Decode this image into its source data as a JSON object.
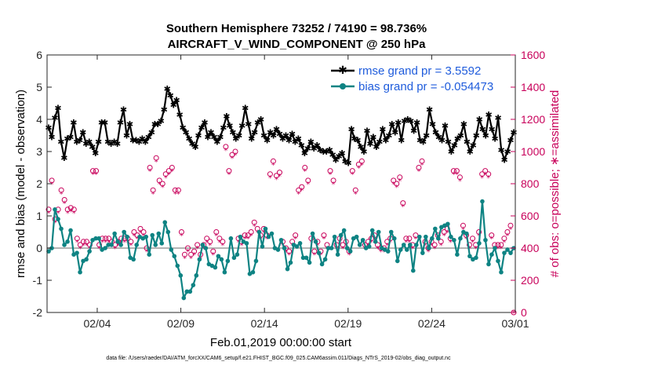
{
  "chart_data": {
    "type": "line",
    "title_line1": "Southern Hemisphere 73252 / 74190 = 98.736%",
    "title_line2": "AIRCRAFT_V_WIND_COMPONENT @ 250 hPa",
    "xlabel": "Feb.01,2019 00:00:00 start",
    "ylabel_left": "rmse and bias (model - observation)",
    "ylabel_right": "# of obs: o=possible; ∗=assimilated",
    "x_ticks": [
      {
        "day": 3,
        "label": "02/04"
      },
      {
        "day": 8,
        "label": "02/09"
      },
      {
        "day": 13,
        "label": "02/14"
      },
      {
        "day": 18,
        "label": "02/19"
      },
      {
        "day": 23,
        "label": "02/24"
      },
      {
        "day": 28,
        "label": "03/01"
      }
    ],
    "xlim": [
      0,
      28
    ],
    "ylim_left": [
      -2,
      6
    ],
    "yticks_left": [
      "-2",
      "-1",
      "0",
      "1",
      "2",
      "3",
      "4",
      "5",
      "6"
    ],
    "ylim_right": [
      0,
      1600
    ],
    "yticks_right": [
      "0",
      "200",
      "400",
      "600",
      "800",
      "1000",
      "1200",
      "1400",
      "1600"
    ],
    "colors": {
      "rmse": "#000000",
      "bias": "#0e8383",
      "count": "#c8005a",
      "zero_line": "#b4b4b4",
      "legend_text": "#1f5cdc"
    },
    "series": [
      {
        "name": "rmse",
        "legend": "rmse grand pr = 3.5592",
        "values": [
          3.75,
          3.45,
          4.05,
          4.35,
          3.3,
          2.8,
          3.4,
          3.45,
          3.9,
          3.3,
          3.35,
          3.6,
          3.25,
          3.3,
          3.15,
          2.95,
          3.3,
          3.9,
          3.9,
          3.3,
          3.25,
          3.3,
          3.25,
          3.9,
          4.3,
          3.5,
          3.85,
          3.35,
          3.35,
          3.3,
          3.4,
          3.3,
          3.45,
          3.6,
          3.85,
          3.85,
          3.95,
          4.3,
          4.95,
          4.75,
          4.45,
          4.6,
          4.15,
          3.75,
          3.6,
          3.4,
          3.25,
          3.15,
          3.5,
          3.75,
          3.9,
          3.45,
          3.6,
          3.45,
          3.3,
          3.45,
          3.75,
          4.1,
          3.8,
          3.6,
          3.4,
          3.5,
          3.8,
          4.35,
          3.85,
          3.4,
          3.6,
          3.9,
          4.0,
          3.5,
          3.35,
          3.6,
          3.5,
          3.7,
          3.55,
          3.4,
          3.5,
          3.35,
          3.55,
          3.3,
          3.4,
          3.2,
          2.95,
          3.1,
          3.3,
          3.1,
          3.2,
          3.05,
          3.0,
          3.0,
          3.05,
          2.9,
          2.75,
          2.85,
          2.95,
          2.7,
          2.65,
          3.7,
          3.4,
          3.35,
          3.15,
          3.0,
          3.65,
          3.25,
          3.45,
          3.15,
          3.3,
          3.7,
          3.35,
          3.5,
          3.85,
          3.6,
          3.9,
          3.35,
          3.95,
          4.0,
          3.95,
          3.65,
          3.9,
          3.35,
          3.3,
          3.5,
          4.3,
          3.85,
          3.6,
          3.45,
          3.35,
          3.8,
          3.3,
          3.0,
          3.2,
          3.4,
          3.5,
          3.85,
          3.3,
          3.0,
          3.2,
          3.5,
          4.0,
          3.7,
          3.5,
          4.15,
          3.7,
          3.4,
          4.05,
          3.05,
          2.75,
          3.0,
          3.35,
          3.6
        ]
      },
      {
        "name": "bias",
        "legend": "bias grand pr = -0.054473",
        "values": [
          -0.1,
          0.0,
          1.2,
          0.9,
          0.6,
          0.1,
          0.2,
          0.55,
          -0.2,
          -0.15,
          -0.75,
          -0.4,
          -0.35,
          -0.1,
          0.25,
          0.3,
          0.3,
          -0.05,
          0.0,
          0.1,
          0.1,
          0.45,
          0.2,
          0.1,
          0.5,
          0.35,
          -0.3,
          -0.35,
          0.1,
          0.35,
          0.3,
          0.35,
          -0.2,
          0.4,
          0.1,
          0.45,
          0.15,
          0.8,
          0.5,
          -0.05,
          -0.25,
          -0.55,
          -0.85,
          -1.55,
          -1.35,
          -1.35,
          -1.15,
          -0.85,
          -0.35,
          0.1,
          0.0,
          -0.5,
          -0.55,
          -0.6,
          -0.25,
          -0.35,
          -0.75,
          -0.4,
          0.3,
          -0.3,
          -0.2,
          0.35,
          0.2,
          0.15,
          -0.8,
          -0.75,
          -0.4,
          0.5,
          0.05,
          0.6,
          0.35,
          0.45,
          0.0,
          -0.05,
          0.25,
          0.0,
          -0.65,
          -0.45,
          0.1,
          0.05,
          0.15,
          -0.3,
          -0.3,
          -0.45,
          0.45,
          0.2,
          -0.15,
          -0.5,
          -0.35,
          0.0,
          0.0,
          0.35,
          -0.2,
          0.4,
          0.55,
          0.0,
          -0.1,
          0.3,
          0.35,
          0.1,
          0.25,
          0.0,
          0.05,
          0.55,
          0.2,
          0.5,
          0.0,
          -0.05,
          -0.1,
          0.5,
          0.3,
          -0.4,
          -0.05,
          0.1,
          -0.05,
          0.1,
          -0.7,
          0.1,
          0.35,
          -0.15,
          0.35,
          0.0,
          0.3,
          0.6,
          0.3,
          0.65,
          0.7,
          0.75,
          0.35,
          0.25,
          -0.2,
          0.3,
          0.5,
          0.45,
          -0.25,
          -0.35,
          -0.3,
          0.15,
          1.45,
          0.25,
          -0.5,
          -0.2,
          0.0,
          -0.4,
          -0.75,
          -0.15,
          -0.05,
          -0.15,
          0.0
        ]
      },
      {
        "name": "obs_possible",
        "marker": "o",
        "values": [
          640,
          820,
          580,
          640,
          760,
          700,
          640,
          650,
          640,
          460,
          420,
          440,
          440,
          420,
          880,
          880,
          420,
          460,
          460,
          460,
          440,
          420,
          440,
          460,
          460,
          460,
          440,
          500,
          480,
          520,
          500,
          400,
          900,
          760,
          960,
          820,
          800,
          860,
          880,
          900,
          760,
          760,
          500,
          360,
          400,
          360,
          380,
          420,
          360,
          420,
          460,
          440,
          380,
          500,
          460,
          440,
          1030,
          880,
          980,
          1000,
          460,
          440,
          480,
          480,
          500,
          560,
          520,
          480,
          520,
          480,
          860,
          940,
          850,
          870,
          440,
          400,
          380,
          440,
          480,
          760,
          780,
          900,
          820,
          460,
          380,
          440,
          380,
          480,
          420,
          880,
          820,
          420,
          460,
          420,
          440,
          380,
          880,
          760,
          920,
          940,
          420,
          440,
          460,
          480,
          420,
          400,
          400,
          440,
          460,
          820,
          800,
          840,
          680,
          460,
          460,
          420,
          480,
          900,
          940,
          440,
          400,
          440,
          420,
          480,
          440,
          500,
          520,
          460,
          880,
          880,
          840,
          540,
          480,
          420,
          460,
          420,
          500,
          860,
          880,
          860,
          480,
          420,
          420,
          420,
          460,
          500,
          540,
          0
        ]
      },
      {
        "name": "obs_assimilated",
        "marker": "*",
        "values": [
          620,
          800,
          560,
          620,
          740,
          680,
          620,
          630,
          620,
          440,
          400,
          420,
          420,
          400,
          860,
          860,
          400,
          440,
          440,
          440,
          420,
          400,
          420,
          440,
          440,
          440,
          420,
          480,
          460,
          500,
          480,
          380,
          880,
          740,
          940,
          800,
          780,
          840,
          860,
          880,
          740,
          740,
          480,
          340,
          380,
          340,
          360,
          400,
          340,
          400,
          440,
          420,
          360,
          480,
          440,
          420,
          1010,
          860,
          960,
          980,
          440,
          420,
          460,
          460,
          480,
          540,
          500,
          460,
          500,
          460,
          840,
          920,
          830,
          850,
          420,
          380,
          360,
          420,
          460,
          740,
          760,
          880,
          800,
          440,
          360,
          420,
          360,
          460,
          400,
          860,
          800,
          400,
          440,
          400,
          420,
          360,
          860,
          740,
          900,
          920,
          400,
          420,
          440,
          460,
          400,
          380,
          380,
          420,
          440,
          800,
          780,
          820,
          660,
          440,
          440,
          400,
          460,
          880,
          920,
          420,
          380,
          420,
          400,
          460,
          420,
          480,
          500,
          440,
          860,
          860,
          820,
          520,
          460,
          400,
          440,
          400,
          480,
          840,
          860,
          840,
          460,
          400,
          400,
          400,
          440,
          480,
          520,
          0
        ]
      }
    ]
  },
  "footer": "data file: /Users/raeder/DAI/ATM_forcXX/CAM6_setup/f.e21.FHIST_BGC.f09_025.CAM6assim.011/Diags_NTrS_2019-02/obs_diag_output.nc"
}
